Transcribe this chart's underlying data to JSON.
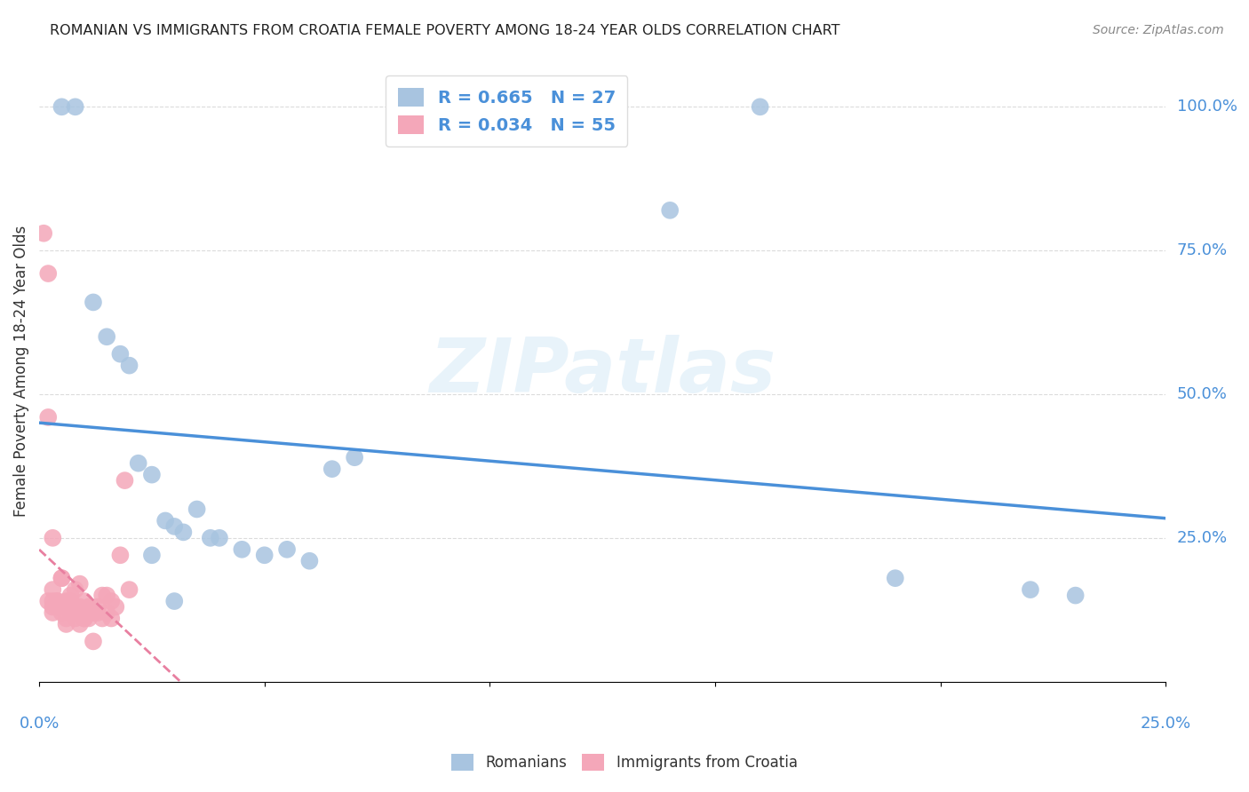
{
  "title": "ROMANIAN VS IMMIGRANTS FROM CROATIA FEMALE POVERTY AMONG 18-24 YEAR OLDS CORRELATION CHART",
  "source": "Source: ZipAtlas.com",
  "ylabel": "Female Poverty Among 18-24 Year Olds",
  "ylabel_right_ticks": [
    "100.0%",
    "75.0%",
    "50.0%",
    "25.0%"
  ],
  "ylabel_right_vals": [
    1.0,
    0.75,
    0.5,
    0.25
  ],
  "xlim": [
    0.0,
    0.25
  ],
  "ylim": [
    0.0,
    1.08
  ],
  "romanian_R": 0.665,
  "romanian_N": 27,
  "croatian_R": 0.034,
  "croatian_N": 55,
  "romanian_color": "#a8c4e0",
  "croatian_color": "#f4a7b9",
  "trendline_romanian_color": "#4a90d9",
  "trendline_croatian_color": "#e87fa0",
  "legend_text_color": "#4a90d9",
  "background_color": "#ffffff",
  "romanians_x": [
    0.005,
    0.008,
    0.012,
    0.015,
    0.018,
    0.02,
    0.022,
    0.025,
    0.028,
    0.03,
    0.032,
    0.035,
    0.038,
    0.04,
    0.045,
    0.05,
    0.055,
    0.06,
    0.065,
    0.07,
    0.14,
    0.16,
    0.19,
    0.22,
    0.23,
    0.025,
    0.03
  ],
  "romanians_y": [
    1.0,
    1.0,
    0.66,
    0.6,
    0.57,
    0.55,
    0.38,
    0.36,
    0.28,
    0.27,
    0.26,
    0.3,
    0.25,
    0.25,
    0.23,
    0.22,
    0.23,
    0.21,
    0.37,
    0.39,
    0.82,
    1.0,
    0.18,
    0.16,
    0.15,
    0.22,
    0.14
  ],
  "croatians_x": [
    0.001,
    0.002,
    0.003,
    0.004,
    0.005,
    0.006,
    0.007,
    0.008,
    0.009,
    0.01,
    0.011,
    0.012,
    0.013,
    0.014,
    0.015,
    0.016,
    0.017,
    0.018,
    0.019,
    0.02,
    0.003,
    0.004,
    0.005,
    0.006,
    0.007,
    0.008,
    0.009,
    0.01,
    0.011,
    0.012,
    0.013,
    0.014,
    0.015,
    0.016,
    0.002,
    0.003,
    0.004,
    0.005,
    0.006,
    0.007,
    0.008,
    0.009,
    0.01,
    0.011,
    0.012,
    0.003,
    0.004,
    0.005,
    0.006,
    0.007,
    0.008,
    0.009,
    0.01,
    0.002,
    0.003
  ],
  "croatians_y": [
    0.78,
    0.71,
    0.25,
    0.13,
    0.18,
    0.14,
    0.15,
    0.12,
    0.17,
    0.14,
    0.13,
    0.12,
    0.12,
    0.11,
    0.15,
    0.14,
    0.13,
    0.22,
    0.35,
    0.16,
    0.14,
    0.13,
    0.12,
    0.1,
    0.14,
    0.16,
    0.13,
    0.11,
    0.13,
    0.12,
    0.13,
    0.15,
    0.12,
    0.11,
    0.46,
    0.13,
    0.14,
    0.18,
    0.13,
    0.12,
    0.11,
    0.1,
    0.12,
    0.11,
    0.07,
    0.16,
    0.14,
    0.13,
    0.11,
    0.12,
    0.13,
    0.12,
    0.11,
    0.14,
    0.12
  ]
}
